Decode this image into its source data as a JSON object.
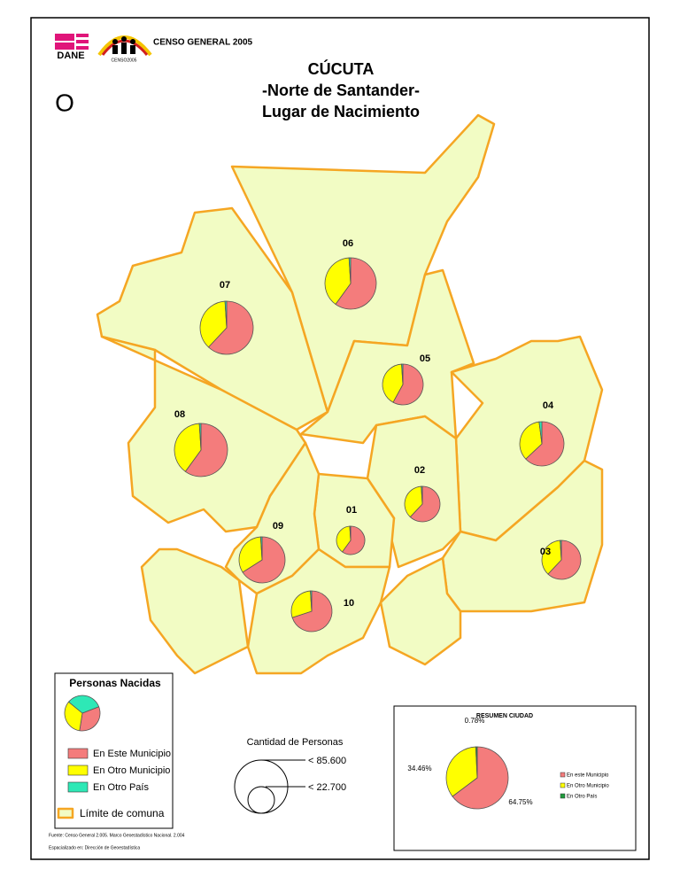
{
  "header": {
    "org": "DANE",
    "logo_text": "CENSO2005",
    "census": "CENSO GENERAL 2005"
  },
  "title": [
    "CÚCUTA",
    "-Norte de Santander-",
    "Lugar de Nacimiento"
  ],
  "north": "O",
  "comunas": [
    {
      "label": "07",
      "shares": [
        62,
        37,
        1
      ]
    },
    {
      "label": "06",
      "shares": [
        60,
        39,
        1
      ]
    },
    {
      "label": "05",
      "shares": [
        58,
        41,
        1
      ]
    },
    {
      "label": "04",
      "shares": [
        63,
        35,
        2
      ]
    },
    {
      "label": "08",
      "shares": [
        60,
        39,
        1
      ]
    },
    {
      "label": "02",
      "shares": [
        62,
        37,
        1
      ]
    },
    {
      "label": "01",
      "shares": [
        60,
        39,
        1
      ]
    },
    {
      "label": "09",
      "shares": [
        66,
        33,
        1
      ]
    },
    {
      "label": "03",
      "shares": [
        62,
        37,
        1
      ]
    },
    {
      "label": "10",
      "shares": [
        70,
        29,
        1
      ]
    }
  ],
  "legend": {
    "title": "Personas Nacidas",
    "categories": [
      "En Este Municipio",
      "En Otro Municipio",
      "En Otro País"
    ],
    "colors": [
      "#f47c7c",
      "#ffff00",
      "#2ee8b6"
    ],
    "boundary": "Límite de comuna"
  },
  "size_legend": {
    "title": "Cantidad de Personas",
    "labels": [
      "< 85.600",
      "< 22.700"
    ]
  },
  "summary": {
    "title": "RESUMEN CIUDAD",
    "values": [
      64.75,
      34.46,
      0.78
    ],
    "value_labels": [
      "64.75%",
      "34.46%",
      "0.78%"
    ],
    "categories": [
      "En este Municipio",
      "En Otro Municipio",
      "En Otro País"
    ],
    "colors": [
      "#f47c7c",
      "#ffff00",
      "#1e9a3c"
    ]
  },
  "footnotes": [
    "Fuente: Censo General 2.005. Marco Geoestadístico Nacional. 2.004",
    "Espacializado en: Dirección de Geoestadística"
  ]
}
